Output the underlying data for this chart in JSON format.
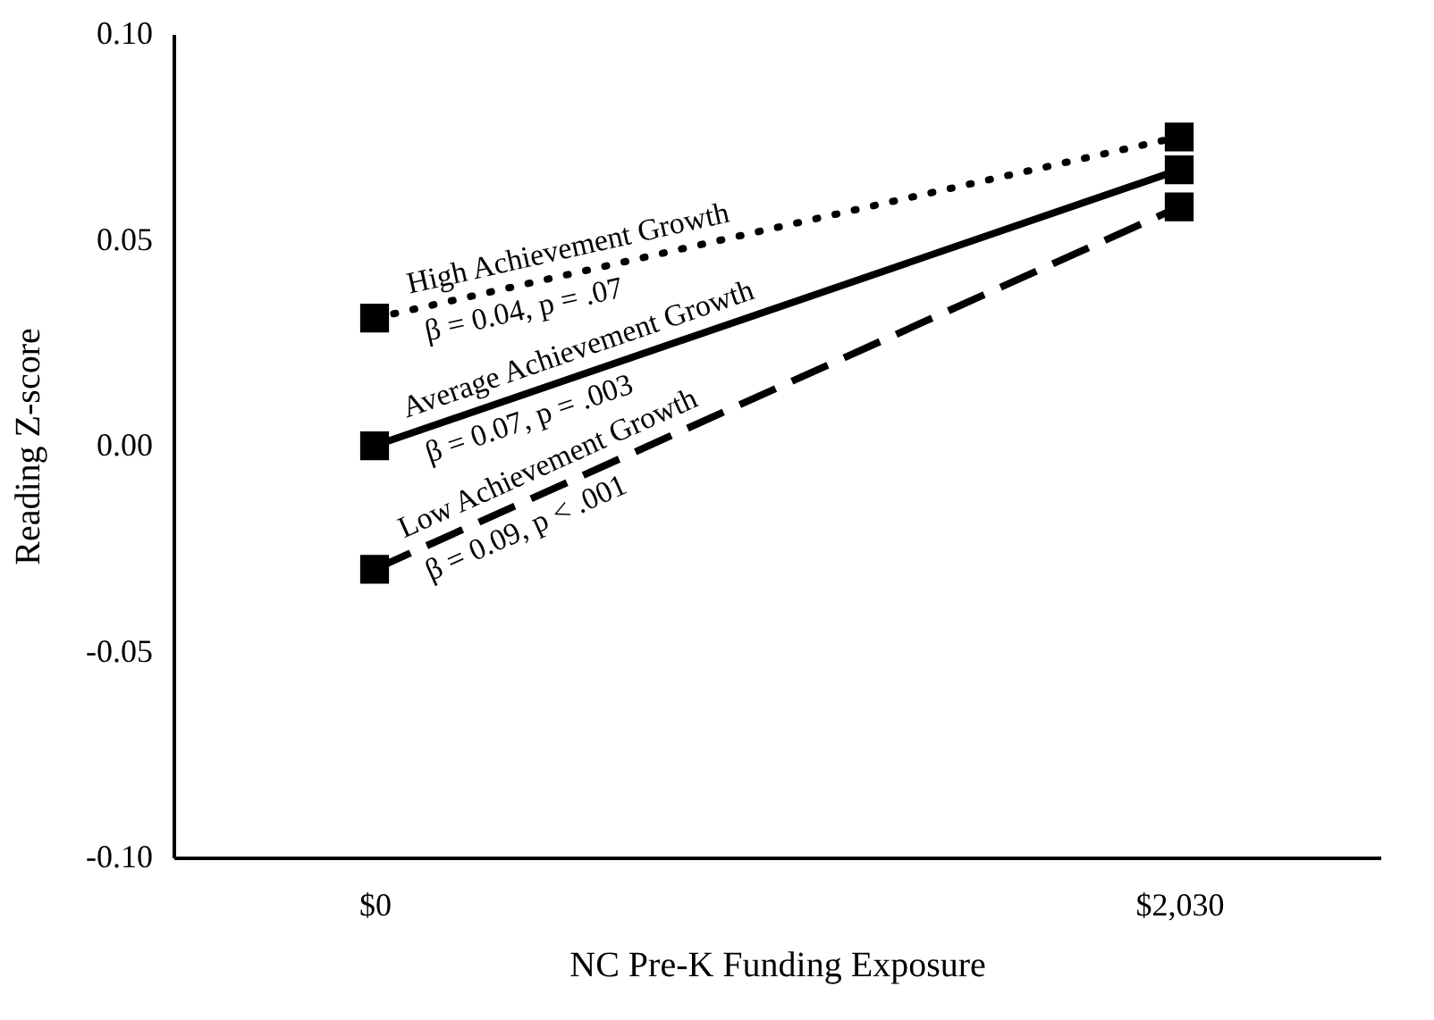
{
  "chart_data": {
    "type": "line",
    "categories": [
      "$0",
      "$2,030"
    ],
    "xlabel": "NC Pre-K Funding Exposure",
    "ylabel": "Reading Z-score",
    "ylim": [
      -0.1,
      0.1
    ],
    "yticks": [
      {
        "value": -0.1,
        "label": "-0.10"
      },
      {
        "value": -0.05,
        "label": "-0.05"
      },
      {
        "value": 0,
        "label": "0.00"
      },
      {
        "value": 0.05,
        "label": "0.05"
      },
      {
        "value": 0.1,
        "label": "0.10"
      }
    ],
    "marker": "square",
    "grid": false,
    "legend": false,
    "series": [
      {
        "name": "High Achievement Growth",
        "color": "#000000",
        "line_style": "dotted",
        "values": [
          0.031,
          0.075
        ]
      },
      {
        "name": "Average Achievement Growth",
        "color": "#000000",
        "line_style": "solid",
        "values": [
          0.0,
          0.067
        ]
      },
      {
        "name": "Low Achievement Growth",
        "color": "#000000",
        "line_style": "dashed",
        "values": [
          -0.03,
          0.058
        ]
      }
    ],
    "annotations": [
      {
        "text": "β = 0.04, p = .07",
        "x": "$0",
        "y": 0.031
      },
      {
        "text": "β = 0.07, p = .003",
        "x": "$0",
        "y": 0.0
      },
      {
        "text": "β = 0.09, p < .001",
        "x": "$0",
        "y": -0.03
      }
    ]
  }
}
